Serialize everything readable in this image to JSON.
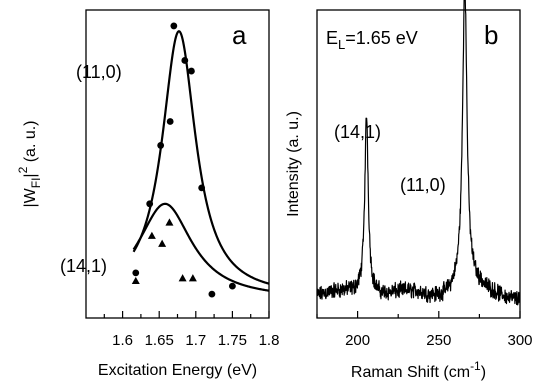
{
  "chart_data": [
    {
      "type": "line",
      "panel_label": "a",
      "xlabel": "Excitation Energy (eV)",
      "ylabel": {
        "base": "|W",
        "sub": "FI",
        "sup": "2",
        "rest": " (a. u.)"
      },
      "xlim": [
        1.55,
        1.8
      ],
      "xticks": [
        "1.6",
        "1.65",
        "1.7",
        "1.75",
        "1.8"
      ],
      "yticks_labeled": false,
      "series": [
        {
          "name": "(11,0)",
          "peak_energy": 1.677,
          "peak_value": 1.0,
          "width": 0.028,
          "baseline": 0.0,
          "points_marker": "circle",
          "points": [
            [
              1.618,
              0.09
            ],
            [
              1.637,
              0.35
            ],
            [
              1.652,
              0.57
            ],
            [
              1.665,
              0.66
            ],
            [
              1.67,
              1.02
            ],
            [
              1.685,
              0.89
            ],
            [
              1.694,
              0.85
            ],
            [
              1.708,
              0.41
            ],
            [
              1.722,
              0.01
            ],
            [
              1.75,
              0.04
            ]
          ]
        },
        {
          "name": "(14,1)",
          "peak_energy": 1.658,
          "peak_value": 0.36,
          "width": 0.045,
          "baseline": -0.01,
          "points_marker": "triangle",
          "points": [
            [
              1.618,
              0.06
            ],
            [
              1.64,
              0.23
            ],
            [
              1.654,
              0.2
            ],
            [
              1.664,
              0.28
            ],
            [
              1.682,
              0.07
            ],
            [
              1.696,
              0.07
            ]
          ]
        }
      ],
      "annotations": [
        "(11,0)",
        "(14,1)"
      ]
    },
    {
      "type": "line",
      "panel_label": "b",
      "note": {
        "base": "E",
        "sub": "L",
        "rest": "=1.65 eV"
      },
      "xlabel": {
        "base": "Raman Shift (cm",
        "sup": "-1",
        "rest": ")"
      },
      "ylabel": "Intensity (a. u.)",
      "xlim": [
        175,
        300
      ],
      "xticks": [
        "200",
        "250",
        "300"
      ],
      "yticks_labeled": false,
      "peaks": [
        {
          "label": "(14,1)",
          "center": 205.5,
          "height": 0.57,
          "hwhm": 1.3
        },
        {
          "label": "(11,0)",
          "center": 266.0,
          "height": 0.97,
          "hwhm": 1.6
        }
      ],
      "baseline": 0.07,
      "noise_amplitude": 0.02
    }
  ]
}
